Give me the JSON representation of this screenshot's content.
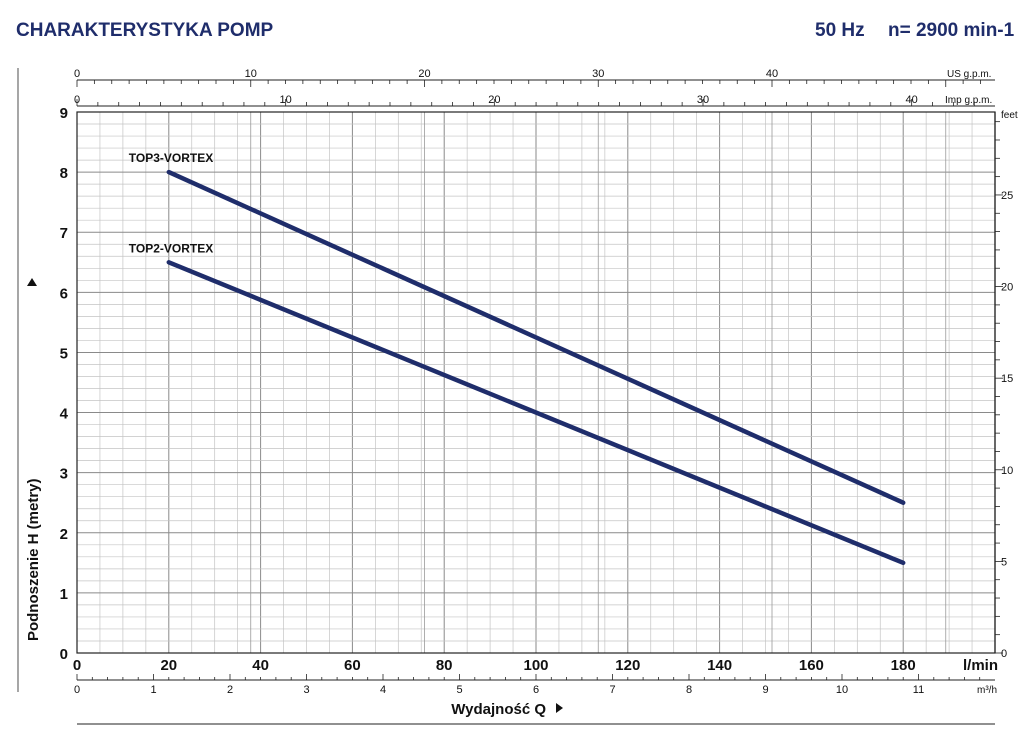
{
  "header": {
    "title": "CHARAKTERYSTYKA POMP",
    "frequency": "50 Hz",
    "speed": "n= 2900 min-1"
  },
  "chart_data": {
    "type": "line",
    "title": "CHARAKTERYSTYKA POMP",
    "xlabel": "Wydajność Q",
    "ylabel": "Podnoszenie H  (metry)",
    "x_unit": "l/min",
    "xlim": [
      0,
      200
    ],
    "ylim": [
      0,
      9
    ],
    "grid": true,
    "x_ticks": [
      "0",
      "20",
      "40",
      "60",
      "80",
      "100",
      "120",
      "140",
      "160",
      "180"
    ],
    "y_ticks": [
      "0",
      "1",
      "2",
      "3",
      "4",
      "5",
      "6",
      "7",
      "8",
      "9"
    ],
    "secondary_axes": {
      "us_gpm": {
        "unit": "US g.p.m.",
        "ticks": [
          "0",
          "10",
          "20",
          "30",
          "40"
        ]
      },
      "imp_gpm": {
        "unit": "Imp g.p.m.",
        "ticks": [
          "0",
          "10",
          "20",
          "30",
          "40"
        ]
      },
      "m3h": {
        "unit": "m³/h",
        "ticks": [
          "0",
          "1",
          "2",
          "3",
          "4",
          "5",
          "6",
          "7",
          "8",
          "9",
          "10",
          "11"
        ]
      },
      "feet": {
        "unit": "feet",
        "ticks": [
          "0",
          "5",
          "10",
          "15",
          "20",
          "25"
        ]
      }
    },
    "series": [
      {
        "name": "TOP3-VORTEX",
        "x": [
          20,
          180
        ],
        "y": [
          8.0,
          2.5
        ],
        "color": "#1f2d6b"
      },
      {
        "name": "TOP2-VORTEX",
        "x": [
          20,
          180
        ],
        "y": [
          6.5,
          1.5
        ],
        "color": "#1f2d6b"
      }
    ]
  }
}
